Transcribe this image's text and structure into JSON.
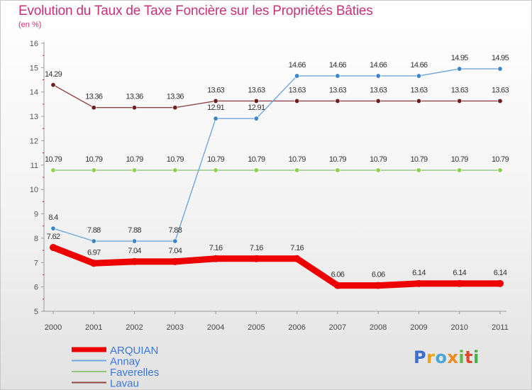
{
  "title": "Evolution du Taux de Taxe Foncière sur les Propriétés Bâties",
  "subtitle": "(en %)",
  "logo_text": "Proxiti",
  "logo_letters": [
    "P",
    "r",
    "o",
    "x",
    "i",
    "t",
    "i"
  ],
  "chart_data": {
    "type": "line",
    "title": "Evolution du Taux de Taxe Foncière sur les Propriétés Bâties",
    "ylabel": "(en %)",
    "xlabel": "",
    "x": [
      "2000",
      "2001",
      "2002",
      "2003",
      "2004",
      "2005",
      "2006",
      "2007",
      "2008",
      "2009",
      "2010",
      "2011"
    ],
    "ylim": [
      5,
      16
    ],
    "yticks": [
      "5",
      "6",
      "7",
      "8",
      "9",
      "10",
      "11",
      "12",
      "13",
      "14",
      "15",
      "16"
    ],
    "grid": false,
    "legend_position": "bottom-left",
    "series": [
      {
        "name": "ARQUIAN",
        "color": "#ee0000",
        "marker_color": "#ee0000",
        "label_color": "#333333",
        "emphasis": true,
        "values": [
          7.62,
          6.97,
          7.04,
          7.04,
          7.16,
          7.16,
          7.16,
          6.06,
          6.06,
          6.14,
          6.14,
          6.14
        ],
        "labels": [
          "7.62",
          "6.97",
          "7.04",
          "7.04",
          "7.16",
          "7.16",
          "7.16",
          "6.06",
          "6.06",
          "6.14",
          "6.14",
          "6.14"
        ]
      },
      {
        "name": "Annay",
        "color": "#6fa8dc",
        "marker_color": "#3d85c6",
        "label_color": "#333333",
        "emphasis": false,
        "values": [
          8.4,
          7.88,
          7.88,
          7.88,
          12.91,
          12.91,
          14.66,
          14.66,
          14.66,
          14.66,
          14.95,
          14.95
        ],
        "labels": [
          "8.4",
          "7.88",
          "7.88",
          "7.88",
          "12.91",
          "12.91",
          "14.66",
          "14.66",
          "14.66",
          "14.66",
          "14.95",
          "14.95"
        ]
      },
      {
        "name": "Faverelles",
        "color": "#93c47d",
        "marker_color": "#8bd14a",
        "label_color": "#333333",
        "emphasis": false,
        "values": [
          10.79,
          10.79,
          10.79,
          10.79,
          10.79,
          10.79,
          10.79,
          10.79,
          10.79,
          10.79,
          10.79,
          10.79
        ],
        "labels": [
          "10.79",
          "10.79",
          "10.79",
          "10.79",
          "10.79",
          "10.79",
          "10.79",
          "10.79",
          "10.79",
          "10.79",
          "10.79",
          "10.79"
        ]
      },
      {
        "name": "Lavau",
        "color": "#8e4545",
        "marker_color": "#6e1e1e",
        "label_color": "#333333",
        "emphasis": false,
        "values": [
          14.29,
          13.36,
          13.36,
          13.36,
          13.63,
          13.63,
          13.63,
          13.63,
          13.63,
          13.63,
          13.63,
          13.63
        ],
        "labels": [
          "14.29",
          "13.36",
          "13.36",
          "13.36",
          "13.63",
          "13.63",
          "13.63",
          "13.63",
          "13.63",
          "13.63",
          "13.63",
          "13.63"
        ]
      }
    ]
  }
}
